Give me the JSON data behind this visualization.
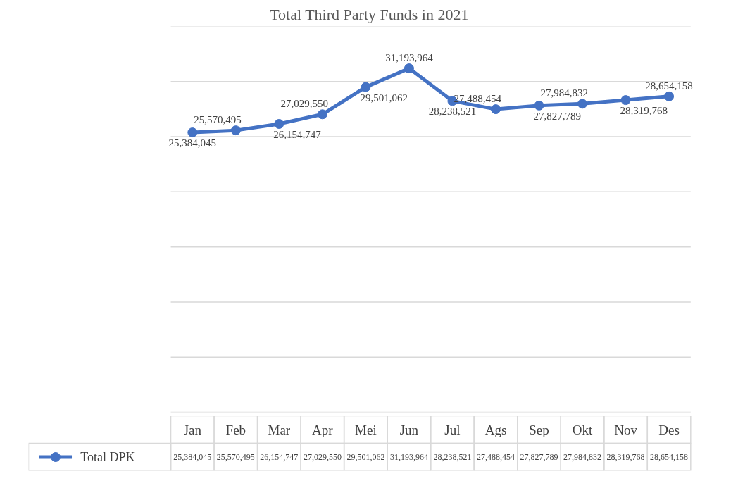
{
  "chart_data": {
    "type": "line",
    "title": "Total Third Party Funds in 2021",
    "categories": [
      "Jan",
      "Feb",
      "Mar",
      "Apr",
      "Mei",
      "Jun",
      "Jul",
      "Ags",
      "Sep",
      "Okt",
      "Nov",
      "Des"
    ],
    "series": [
      {
        "name": "Total DPK",
        "color": "#4472c4",
        "values": [
          25384045,
          25570495,
          26154747,
          27029550,
          29501062,
          31193964,
          28238521,
          27488454,
          27827789,
          27984832,
          28319768,
          28654158
        ],
        "value_labels": [
          "25,384,045",
          "25,570,495",
          "26,154,747",
          "27,029,550",
          "29,501,062",
          "31,193,964",
          "28,238,521",
          "27,488,454",
          "27,827,789",
          "27,984,832",
          "28,319,768",
          "28,654,158"
        ]
      }
    ],
    "ylim": [
      0,
      35000000
    ],
    "yticks": [
      {
        "value": 0,
        "label": null
      },
      {
        "value": 5000000,
        "label": null
      },
      {
        "value": 10000000,
        "label": null
      },
      {
        "value": 15000000,
        "label": null
      },
      {
        "value": 20000000,
        "label": null
      },
      {
        "value": 25000000,
        "label": null
      },
      {
        "value": 30000000,
        "label": null
      },
      {
        "value": 35000000,
        "label": null
      }
    ],
    "grid": "y",
    "tick_labels": "x",
    "legend": "bottom",
    "marker": "circle",
    "line_style": "solid",
    "data_labels": true
  }
}
